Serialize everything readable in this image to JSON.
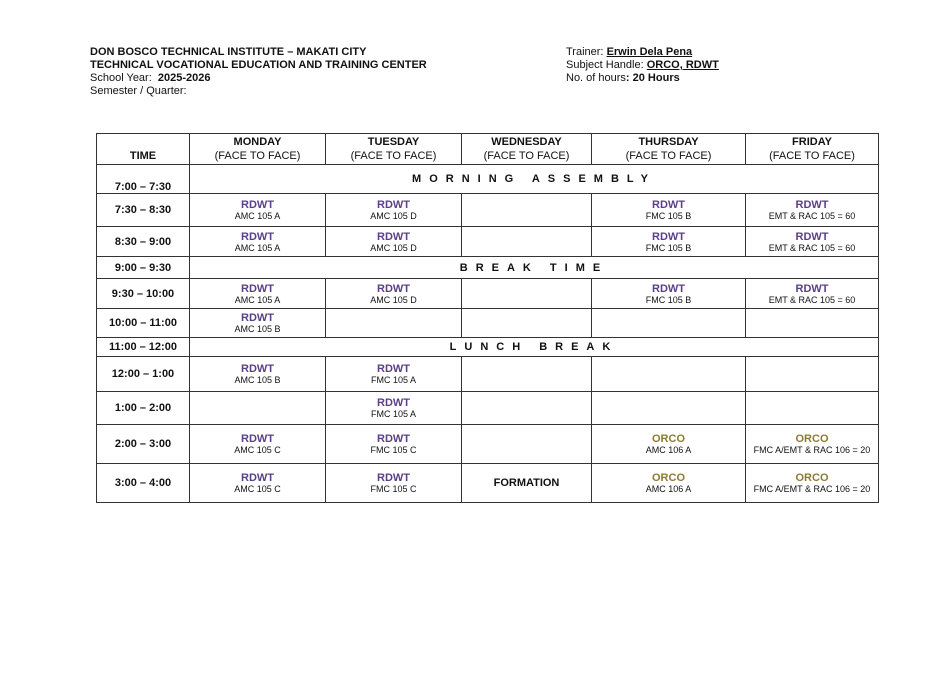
{
  "header": {
    "institution": "DON BOSCO TECHNICAL INSTITUTE – MAKATI CITY",
    "center": "TECHNICAL VOCATIONAL EDUCATION AND TRAINING CENTER",
    "school_year_label": "School Year:",
    "school_year": "2025-2026",
    "semester_label": "Semester / Quarter:",
    "trainer_label": "Trainer:",
    "trainer": "Erwin Dela Pena",
    "subject_label": "Subject Handle:",
    "subject": "ORCO, RDWT",
    "hours_label": "No. of hours",
    "hours": ": 20 Hours"
  },
  "colors": {
    "RDWT": "#5b3f8a",
    "ORCO": "#8c7b35"
  },
  "table": {
    "time_header": "TIME",
    "days": [
      {
        "day": "MONDAY",
        "mode": "(FACE TO FACE)"
      },
      {
        "day": "TUESDAY",
        "mode": "(FACE TO FACE)"
      },
      {
        "day": "WEDNESDAY",
        "mode": "(FACE TO FACE)"
      },
      {
        "day": "THURSDAY",
        "mode": "(FACE TO FACE)"
      },
      {
        "day": "FRIDAY",
        "mode": "(FACE TO FACE)"
      }
    ],
    "rows": [
      {
        "time": "7:00 – 7:30",
        "span": "MORNING ASSEMBLY"
      },
      {
        "time": "7:30 – 8:30",
        "cells": [
          {
            "subject": "RDWT",
            "section": "AMC 105 A"
          },
          {
            "subject": "RDWT",
            "section": "AMC 105 D"
          },
          {},
          {
            "subject": "RDWT",
            "section": "FMC 105 B"
          },
          {
            "subject": "RDWT",
            "section": "EMT & RAC 105 = 60"
          }
        ]
      },
      {
        "time": "8:30 – 9:00",
        "cells": [
          {
            "subject": "RDWT",
            "section": "AMC 105 A"
          },
          {
            "subject": "RDWT",
            "section": "AMC 105 D"
          },
          {},
          {
            "subject": "RDWT",
            "section": "FMC 105 B"
          },
          {
            "subject": "RDWT",
            "section": "EMT & RAC 105 = 60"
          }
        ]
      },
      {
        "time": "9:00 – 9:30",
        "span": "BREAK TIME"
      },
      {
        "time": "9:30 – 10:00",
        "cells": [
          {
            "subject": "RDWT",
            "section": "AMC 105 A"
          },
          {
            "subject": "RDWT",
            "section": "AMC 105 D"
          },
          {},
          {
            "subject": "RDWT",
            "section": "FMC 105 B"
          },
          {
            "subject": "RDWT",
            "section": "EMT & RAC 105 = 60"
          }
        ]
      },
      {
        "time": "10:00 – 11:00",
        "cells": [
          {
            "subject": "RDWT",
            "section": "AMC 105 B"
          },
          {},
          {},
          {},
          {}
        ]
      },
      {
        "time": "11:00 – 12:00",
        "span": "LUNCH BREAK"
      },
      {
        "time": "12:00 – 1:00",
        "cells": [
          {
            "subject": "RDWT",
            "section": "AMC 105 B"
          },
          {
            "subject": "RDWT",
            "section": "FMC 105 A"
          },
          {},
          {},
          {}
        ]
      },
      {
        "time": "1:00 – 2:00",
        "cells": [
          {},
          {
            "subject": "RDWT",
            "section": "FMC 105 A"
          },
          {},
          {},
          {}
        ]
      },
      {
        "time": "2:00 – 3:00",
        "cells": [
          {
            "subject": "RDWT",
            "section": "AMC 105 C"
          },
          {
            "subject": "RDWT",
            "section": "FMC 105 C"
          },
          {},
          {
            "subject": "ORCO",
            "section": "AMC 106 A"
          },
          {
            "subject": "ORCO",
            "section": "FMC A/EMT & RAC 106 = 20"
          }
        ]
      },
      {
        "time": "3:00 – 4:00",
        "cells": [
          {
            "subject": "RDWT",
            "section": "AMC 105 C"
          },
          {
            "subject": "RDWT",
            "section": "FMC 105 C"
          },
          {
            "text": "FORMATION"
          },
          {
            "subject": "ORCO",
            "section": "AMC 106 A"
          },
          {
            "subject": "ORCO",
            "section": "FMC A/EMT & RAC 106 = 20"
          }
        ]
      }
    ]
  }
}
